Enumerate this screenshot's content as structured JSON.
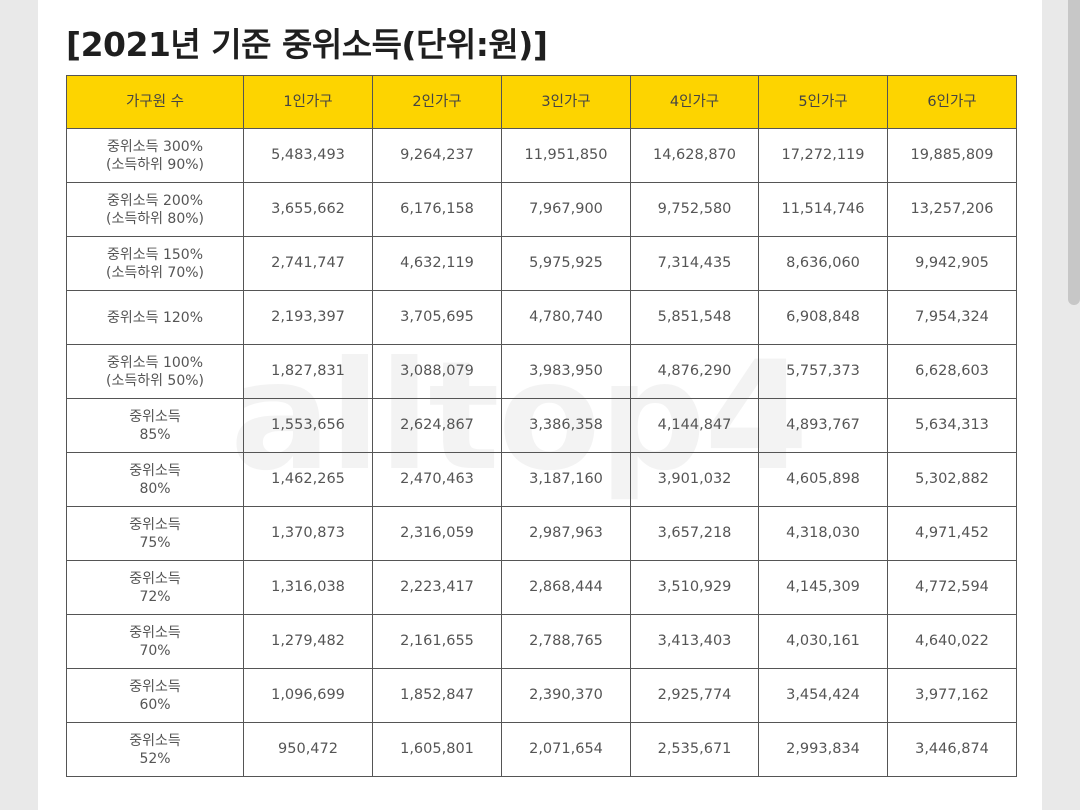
{
  "title": "[2021년 기준 중위소득(단위:원)]",
  "watermark": "alltop4",
  "table": {
    "headers": [
      "가구원 수",
      "1인가구",
      "2인가구",
      "3인가구",
      "4인가구",
      "5인가구",
      "6인가구"
    ],
    "rows": [
      {
        "label1": "중위소득 300%",
        "label2": "(소득하위 90%)",
        "values": [
          "5,483,493",
          "9,264,237",
          "11,951,850",
          "14,628,870",
          "17,272,119",
          "19,885,809"
        ]
      },
      {
        "label1": "중위소득 200%",
        "label2": "(소득하위 80%)",
        "values": [
          "3,655,662",
          "6,176,158",
          "7,967,900",
          "9,752,580",
          "11,514,746",
          "13,257,206"
        ]
      },
      {
        "label1": "중위소득 150%",
        "label2": "(소득하위 70%)",
        "values": [
          "2,741,747",
          "4,632,119",
          "5,975,925",
          "7,314,435",
          "8,636,060",
          "9,942,905"
        ]
      },
      {
        "label1": "중위소득 120%",
        "label2": "",
        "values": [
          "2,193,397",
          "3,705,695",
          "4,780,740",
          "5,851,548",
          "6,908,848",
          "7,954,324"
        ]
      },
      {
        "label1": "중위소득 100%",
        "label2": "(소득하위 50%)",
        "values": [
          "1,827,831",
          "3,088,079",
          "3,983,950",
          "4,876,290",
          "5,757,373",
          "6,628,603"
        ]
      },
      {
        "label1": "중위소득",
        "label2": "85%",
        "values": [
          "1,553,656",
          "2,624,867",
          "3,386,358",
          "4,144,847",
          "4,893,767",
          "5,634,313"
        ]
      },
      {
        "label1": "중위소득",
        "label2": "80%",
        "values": [
          "1,462,265",
          "2,470,463",
          "3,187,160",
          "3,901,032",
          "4,605,898",
          "5,302,882"
        ]
      },
      {
        "label1": "중위소득",
        "label2": "75%",
        "values": [
          "1,370,873",
          "2,316,059",
          "2,987,963",
          "3,657,218",
          "4,318,030",
          "4,971,452"
        ]
      },
      {
        "label1": "중위소득",
        "label2": "72%",
        "values": [
          "1,316,038",
          "2,223,417",
          "2,868,444",
          "3,510,929",
          "4,145,309",
          "4,772,594"
        ]
      },
      {
        "label1": "중위소득",
        "label2": "70%",
        "values": [
          "1,279,482",
          "2,161,655",
          "2,788,765",
          "3,413,403",
          "4,030,161",
          "4,640,022"
        ]
      },
      {
        "label1": "중위소득",
        "label2": "60%",
        "values": [
          "1,096,699",
          "1,852,847",
          "2,390,370",
          "2,925,774",
          "3,454,424",
          "3,977,162"
        ]
      },
      {
        "label1": "중위소득",
        "label2": "52%",
        "values": [
          "950,472",
          "1,605,801",
          "2,071,654",
          "2,535,671",
          "2,993,834",
          "3,446,874"
        ]
      }
    ]
  },
  "colors": {
    "header_background": "#fdd400",
    "border": "#555555",
    "page_background": "#ffffff",
    "outer_background": "#e9e9e9",
    "scrollbar": "#c7c7c7"
  }
}
